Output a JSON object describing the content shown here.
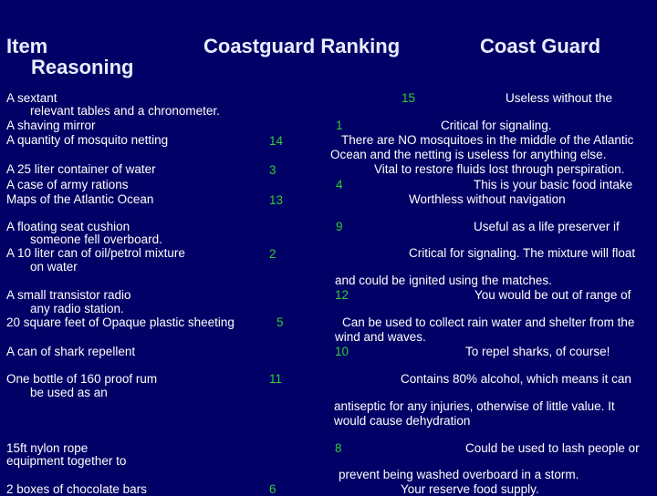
{
  "header": {
    "col1_line1": "Item",
    "col1_line2": "Reasoning",
    "col2": "Coastguard Ranking",
    "col3": "Coast Guard"
  },
  "rows": [
    {
      "left": "A sextant"
    },
    {
      "left": "relevant tables and a chronometer."
    },
    {
      "left": "A shaving mirror"
    },
    {
      "left": "A quantity of mosquito netting",
      "rank": "14"
    },
    {
      "left": "A 25 liter container of water",
      "rank": "3"
    },
    {
      "left": "A case of army rations"
    },
    {
      "left": "Maps of the Atlantic Ocean",
      "rank": "13"
    },
    {
      "left": "A floating seat cushion"
    },
    {
      "left": "someone fell overboard."
    },
    {
      "left": "A 10 liter can of oil/petrol mixture",
      "rank": "2"
    },
    {
      "left": "on water"
    },
    {
      "left": "A small transistor radio"
    },
    {
      "left": "any radio station."
    },
    {
      "left": "20 square feet of Opaque plastic sheeting",
      "rank": "5"
    },
    {
      "left": "A can of shark repellent"
    },
    {
      "left": "One bottle of 160 proof rum",
      "rank": "11"
    },
    {
      "left": "be used as an"
    },
    {
      "left": "15ft nylon rope"
    },
    {
      "left": "equipment together to"
    },
    {
      "left": "2 boxes of chocolate bars",
      "rank": "6"
    }
  ],
  "right": {
    "r1_num": "15",
    "r1_text": "Useless without the",
    "r2_num": "1",
    "r2_text": "Critical for signaling.",
    "r3": "There are NO mosquitoes in the middle of the Atlantic",
    "r4": "Ocean and the netting is useless for anything else.",
    "r5": "Vital to restore fluids lost through perspiration.",
    "r6_num": "4",
    "r6_text": "This is your basic food intake",
    "r7": "Worthless without navigation",
    "r8_num": "9",
    "r8_text": "Useful as a life preserver if",
    "r9": "Critical for signaling. The mixture will float",
    "r10": "and could be ignited using the matches.",
    "r11_num": "12",
    "r11_text": "You would be out of range of",
    "r12": "Can be used to collect rain water and shelter from the",
    "r13": "wind and waves.",
    "r14_num": "10",
    "r14_text": "To repel sharks, of course!",
    "r15": "Contains 80% alcohol, which means it can",
    "r16": "antiseptic for any injuries, otherwise of little value. It",
    "r17": "would cause dehydration",
    "r18_num": "8",
    "r18_text": "Could be used to lash people or",
    "r19": "prevent being washed overboard in a storm.",
    "r20": "Your reserve food supply."
  },
  "colors": {
    "background": "#000066",
    "rank": "#33cc33",
    "text": "#ffffff"
  }
}
